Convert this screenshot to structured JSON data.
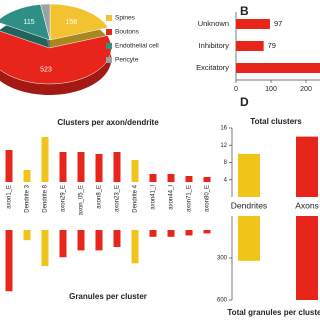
{
  "chart_data": [
    {
      "type": "pie",
      "categories": [
        "Spines",
        "Boutons",
        "Endothelial cell",
        "Pericyte"
      ],
      "values": [
        158,
        523,
        115,
        20
      ],
      "value_labels": [
        "158",
        "523",
        "115",
        null
      ],
      "colors": [
        "#f2c230",
        "#e8251b",
        "#2f8f86",
        "#9aa3a2"
      ]
    },
    {
      "type": "hbar",
      "panel_label": "B",
      "categories": [
        "Unknown",
        "Inhibitory",
        "Excitatory"
      ],
      "values": [
        97,
        79,
        280
      ],
      "value_labels": [
        "97",
        "79",
        null
      ],
      "color": "#e8251b",
      "xlim": [
        0,
        240
      ],
      "xticks": [
        0,
        100,
        200
      ]
    },
    {
      "type": "bar",
      "title": "Clusters per axon/dendrite",
      "categories": [
        "axon1_E",
        "Dendrite 3",
        "Dendrite 8",
        "axon29_E",
        "axon_05_E",
        "axon8_E",
        "axon23_E",
        "Dendrite 4",
        "axon41_I",
        "axon44_I",
        "axon71_E",
        "axon80_E"
      ],
      "values": [
        32,
        12,
        45,
        30,
        30,
        28,
        30,
        22,
        8,
        8,
        6,
        5
      ],
      "colors": [
        "#e8251b",
        "#f0c419",
        "#f0c419",
        "#e8251b",
        "#e8251b",
        "#e8251b",
        "#e8251b",
        "#f0c419",
        "#e8251b",
        "#e8251b",
        "#e8251b",
        "#e8251b"
      ],
      "ylim": [
        0,
        50
      ]
    },
    {
      "type": "bar",
      "title": "Granules per cluster",
      "direction": "down",
      "values": [
        90,
        15,
        53,
        40,
        30,
        30,
        25,
        49,
        10,
        10,
        8,
        5
      ],
      "colors": [
        "#e8251b",
        "#f0c419",
        "#f0c419",
        "#e8251b",
        "#e8251b",
        "#e8251b",
        "#e8251b",
        "#f0c419",
        "#e8251b",
        "#e8251b",
        "#e8251b",
        "#e8251b"
      ],
      "ylim": [
        0,
        100
      ]
    },
    {
      "type": "bar",
      "panel_label": "D",
      "title": "Total clusters",
      "categories": [
        "Dendrites",
        "Axons"
      ],
      "values": [
        10,
        14
      ],
      "colors": [
        "#f0c419",
        "#e8251b"
      ],
      "ylim": [
        0,
        16
      ],
      "yticks": [
        4,
        8,
        12,
        16
      ]
    },
    {
      "type": "bar",
      "title": "Total granules per cluster",
      "direction": "down",
      "values": [
        320,
        600
      ],
      "colors": [
        "#f0c419",
        "#e8251b"
      ],
      "ylim": [
        0,
        600
      ],
      "yticks": [
        300,
        600
      ]
    }
  ]
}
